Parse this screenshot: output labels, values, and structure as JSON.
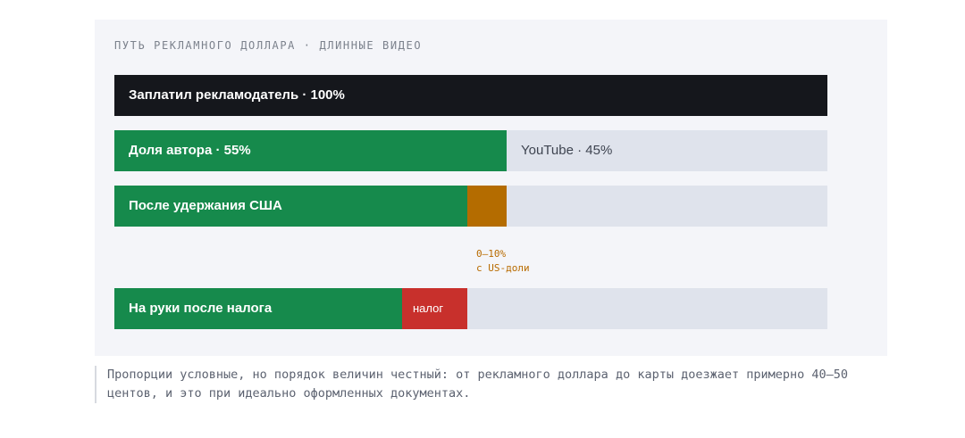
{
  "title": "ПУТЬ РЕКЛАМНОГО ДОЛЛАРА · ДЛИННЫЕ ВИДЕО",
  "colors": {
    "dark": "#15171c",
    "green": "#168a4c",
    "amber": "#b46c00",
    "red": "#c8302c",
    "track": "#dfe3ec"
  },
  "chart_data": {
    "type": "bar",
    "unit": "share of advertiser dollar",
    "rows": [
      {
        "label": "Заплатил рекламодатель · 100%",
        "segments": [
          {
            "label": "Заплатил рекламодатель · 100%",
            "value": 1.0,
            "color": "#15171c"
          }
        ]
      },
      {
        "label": "Доля автора · 55%",
        "segments": [
          {
            "label": "Доля автора · 55%",
            "value": 0.55,
            "color": "#168a4c"
          },
          {
            "label": "YouTube · 45%",
            "value": 0.45,
            "color": "#dfe3ec"
          }
        ]
      },
      {
        "label": "После удержания США",
        "segments": [
          {
            "label": "После удержания США",
            "value": 0.495,
            "color": "#168a4c"
          },
          {
            "label": "",
            "value": 0.055,
            "color": "#b46c00"
          }
        ]
      },
      {
        "label": "На руки после налога",
        "segments": [
          {
            "label": "На руки после налога",
            "value": 0.404,
            "color": "#168a4c"
          },
          {
            "label": "налог",
            "value": 0.091,
            "color": "#c8302c"
          }
        ]
      }
    ],
    "annotation": {
      "line1": "0–10%",
      "line2": "с US-доли"
    }
  },
  "caption": "Пропорции условные, но порядок величин честный: от рекламного доллара до карты доезжает примерно 40–50 центов, и это при идеально оформленных документах."
}
